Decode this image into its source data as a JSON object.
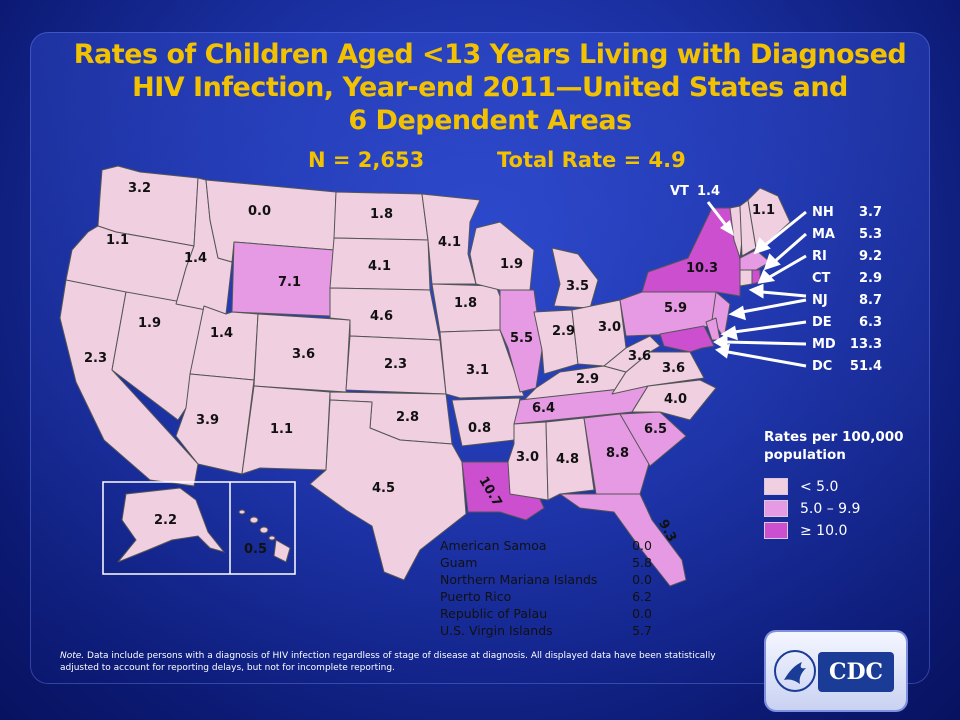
{
  "title": "Rates of Children Aged <13 Years Living with Diagnosed HIV Infection, Year-end 2011—United States and 6 Dependent Areas",
  "title_lines": [
    "Rates of Children Aged <13 Years Living with Diagnosed",
    "HIV Infection, Year-end 2011—United States and",
    "6 Dependent Areas"
  ],
  "n_label": "N = 2,653",
  "total_rate_label": "Total Rate = 4.9",
  "legend": {
    "title_line1": "Rates per 100,000",
    "title_line2": "population",
    "items": [
      {
        "label": "< 5.0",
        "color": "#f0d0e0"
      },
      {
        "label": "5.0 – 9.9",
        "color": "#e79ae4"
      },
      {
        "label": "≥ 10.0",
        "color": "#cc4fcf"
      }
    ]
  },
  "states": {
    "WA": "3.2",
    "OR": "1.1",
    "CA": "2.3",
    "NV": "1.9",
    "ID": "1.4",
    "MT": "0.0",
    "WY": "7.1",
    "UT": "1.4",
    "AZ": "3.9",
    "CO": "3.6",
    "NM": "1.1",
    "ND": "1.8",
    "SD": "4.1",
    "NE": "4.6",
    "KS": "2.3",
    "OK": "2.8",
    "TX": "4.5",
    "MN": "4.1",
    "IA": "1.8",
    "MO": "3.1",
    "AR": "0.8",
    "LA": "10.7",
    "WI": "1.9",
    "IL": "5.5",
    "MI": "3.5",
    "IN": "2.9",
    "OH": "3.0",
    "KY": "2.9",
    "TN": "6.4",
    "MS": "3.0",
    "AL": "4.8",
    "GA": "8.8",
    "FL": "9.3",
    "SC": "6.5",
    "NC": "4.0",
    "VA": "3.6",
    "WV": "3.6",
    "PA": "5.9",
    "NY": "10.3",
    "ME": "1.1",
    "AK": "2.2",
    "HI": "0.5"
  },
  "callouts": [
    {
      "code": "VT",
      "value": "1.4"
    },
    {
      "code": "NH",
      "value": "3.7"
    },
    {
      "code": "MA",
      "value": "5.3"
    },
    {
      "code": "RI",
      "value": "9.2"
    },
    {
      "code": "CT",
      "value": "2.9"
    },
    {
      "code": "NJ",
      "value": "8.7"
    },
    {
      "code": "DE",
      "value": "6.3"
    },
    {
      "code": "MD",
      "value": "13.3"
    },
    {
      "code": "DC",
      "value": "51.4"
    }
  ],
  "dependent_areas": [
    {
      "name": "American Samoa",
      "value": "0.0"
    },
    {
      "name": "Guam",
      "value": "5.8"
    },
    {
      "name": "Northern Mariana Islands",
      "value": "0.0"
    },
    {
      "name": "Puerto Rico",
      "value": "6.2"
    },
    {
      "name": "Republic of Palau",
      "value": "0.0"
    },
    {
      "name": "U.S. Virgin Islands",
      "value": "5.7"
    }
  ],
  "note_label": "Note.",
  "note_text": "Data include persons with a diagnosis of HIV infection regardless of stage of disease at diagnosis. All displayed data have been statistically adjusted to account for reporting delays, but not for incomplete reporting.",
  "logo_text": "CDC",
  "colors": {
    "low": "#f0d0e0",
    "mid": "#e79ae4",
    "high": "#cc4fcf",
    "title": "#f2c200",
    "border": "#555555"
  }
}
